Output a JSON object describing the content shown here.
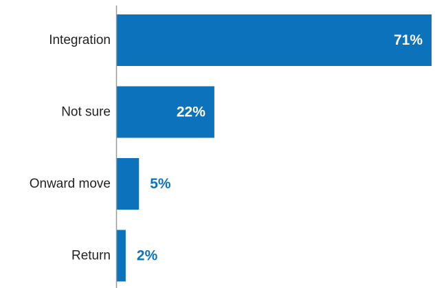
{
  "chart_data": {
    "type": "bar",
    "orientation": "horizontal",
    "categories": [
      "Integration",
      "Not sure",
      "Onward move",
      "Return"
    ],
    "values": [
      71,
      22,
      5,
      2
    ],
    "value_labels": [
      "71%",
      "22%",
      "5%",
      "2%"
    ],
    "unit": "%",
    "xlim": [
      0,
      71
    ],
    "grid": false,
    "legend": "none",
    "title": "",
    "xlabel": "",
    "ylabel": ""
  },
  "colors": {
    "bar": "#0d72bc",
    "label_inside": "#ffffff",
    "label_outside": "#0d72bc",
    "axis": "#999999",
    "category_text": "#222222"
  }
}
